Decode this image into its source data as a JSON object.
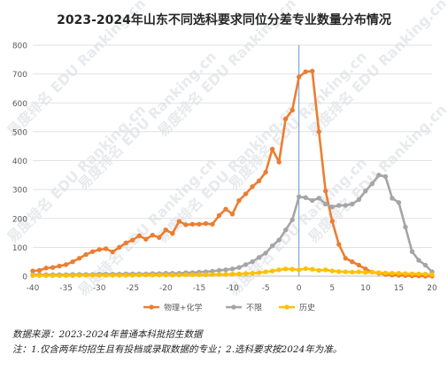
{
  "page": {
    "source_line": "数据来源：2023-2024年普通本科批招生数据",
    "note_line": "注：1.仅含两年均招生且有投档或录取数据的专业；2.选科要求按2024年为准。",
    "watermark": "易度排名 EDU Ranking.cn"
  },
  "chart_data": {
    "type": "line",
    "title": "2023-2024年山东不同选科要求同位分差专业数量分布情况",
    "xlabel": "",
    "ylabel": "",
    "xlim": [
      -40,
      20
    ],
    "ylim": [
      0,
      800
    ],
    "x_ticks": [
      -40,
      -35,
      -30,
      -25,
      -20,
      -15,
      -10,
      -5,
      0,
      5,
      10,
      15,
      20
    ],
    "y_ticks": [
      0,
      100,
      200,
      300,
      400,
      500,
      600,
      700,
      800
    ],
    "grid": "horizontal",
    "legend_position": "bottom",
    "reference_line_x": 0,
    "reference_line_color": "#5b9bd5",
    "series": [
      {
        "name": "物理+化学",
        "color": "#ed7d31",
        "points": [
          [
            -40,
            18
          ],
          [
            -39,
            20
          ],
          [
            -38,
            28
          ],
          [
            -37,
            30
          ],
          [
            -36,
            35
          ],
          [
            -35,
            40
          ],
          [
            -34,
            50
          ],
          [
            -33,
            62
          ],
          [
            -32,
            75
          ],
          [
            -31,
            85
          ],
          [
            -30,
            92
          ],
          [
            -29,
            95
          ],
          [
            -28,
            84
          ],
          [
            -27,
            100
          ],
          [
            -26,
            115
          ],
          [
            -25,
            125
          ],
          [
            -24,
            140
          ],
          [
            -23,
            128
          ],
          [
            -22,
            142
          ],
          [
            -21,
            134
          ],
          [
            -20,
            160
          ],
          [
            -19,
            148
          ],
          [
            -18,
            190
          ],
          [
            -17,
            178
          ],
          [
            -16,
            180
          ],
          [
            -15,
            180
          ],
          [
            -14,
            182
          ],
          [
            -13,
            180
          ],
          [
            -12,
            210
          ],
          [
            -11,
            232
          ],
          [
            -10,
            215
          ],
          [
            -9,
            262
          ],
          [
            -8,
            285
          ],
          [
            -7,
            310
          ],
          [
            -6,
            330
          ],
          [
            -5,
            360
          ],
          [
            -4,
            440
          ],
          [
            -3,
            395
          ],
          [
            -2,
            545
          ],
          [
            -1,
            575
          ],
          [
            0,
            690
          ],
          [
            1,
            708
          ],
          [
            2,
            710
          ],
          [
            3,
            500
          ],
          [
            4,
            295
          ],
          [
            5,
            190
          ],
          [
            6,
            110
          ],
          [
            7,
            62
          ],
          [
            8,
            50
          ],
          [
            9,
            38
          ],
          [
            10,
            25
          ],
          [
            11,
            14
          ],
          [
            12,
            10
          ],
          [
            13,
            6
          ],
          [
            14,
            4
          ],
          [
            15,
            3
          ],
          [
            16,
            2
          ],
          [
            17,
            1
          ],
          [
            18,
            1
          ],
          [
            19,
            0
          ],
          [
            20,
            0
          ]
        ]
      },
      {
        "name": "不限",
        "color": "#a5a5a5",
        "points": [
          [
            -40,
            5
          ],
          [
            -39,
            5
          ],
          [
            -38,
            5
          ],
          [
            -37,
            5
          ],
          [
            -36,
            5
          ],
          [
            -35,
            5
          ],
          [
            -34,
            6
          ],
          [
            -33,
            6
          ],
          [
            -32,
            6
          ],
          [
            -31,
            6
          ],
          [
            -30,
            7
          ],
          [
            -29,
            7
          ],
          [
            -28,
            7
          ],
          [
            -27,
            7
          ],
          [
            -26,
            8
          ],
          [
            -25,
            8
          ],
          [
            -24,
            8
          ],
          [
            -23,
            8
          ],
          [
            -22,
            9
          ],
          [
            -21,
            9
          ],
          [
            -20,
            10
          ],
          [
            -19,
            10
          ],
          [
            -18,
            10
          ],
          [
            -17,
            12
          ],
          [
            -16,
            12
          ],
          [
            -15,
            14
          ],
          [
            -14,
            15
          ],
          [
            -13,
            17
          ],
          [
            -12,
            20
          ],
          [
            -11,
            22
          ],
          [
            -10,
            25
          ],
          [
            -9,
            30
          ],
          [
            -8,
            40
          ],
          [
            -7,
            50
          ],
          [
            -6,
            65
          ],
          [
            -5,
            80
          ],
          [
            -4,
            105
          ],
          [
            -3,
            125
          ],
          [
            -2,
            160
          ],
          [
            -1,
            195
          ],
          [
            0,
            275
          ],
          [
            1,
            272
          ],
          [
            2,
            262
          ],
          [
            3,
            270
          ],
          [
            4,
            250
          ],
          [
            5,
            240
          ],
          [
            6,
            245
          ],
          [
            7,
            245
          ],
          [
            8,
            250
          ],
          [
            9,
            265
          ],
          [
            10,
            295
          ],
          [
            11,
            320
          ],
          [
            12,
            350
          ],
          [
            13,
            345
          ],
          [
            14,
            270
          ],
          [
            15,
            255
          ],
          [
            16,
            170
          ],
          [
            17,
            85
          ],
          [
            18,
            55
          ],
          [
            19,
            38
          ],
          [
            20,
            15
          ]
        ]
      },
      {
        "name": "历史",
        "color": "#ffc000",
        "points": [
          [
            -40,
            2
          ],
          [
            -39,
            2
          ],
          [
            -38,
            2
          ],
          [
            -37,
            2
          ],
          [
            -36,
            2
          ],
          [
            -35,
            2
          ],
          [
            -34,
            2
          ],
          [
            -33,
            3
          ],
          [
            -32,
            3
          ],
          [
            -31,
            3
          ],
          [
            -30,
            3
          ],
          [
            -29,
            3
          ],
          [
            -28,
            3
          ],
          [
            -27,
            3
          ],
          [
            -26,
            3
          ],
          [
            -25,
            3
          ],
          [
            -24,
            4
          ],
          [
            -23,
            4
          ],
          [
            -22,
            4
          ],
          [
            -21,
            4
          ],
          [
            -20,
            4
          ],
          [
            -19,
            4
          ],
          [
            -18,
            4
          ],
          [
            -17,
            5
          ],
          [
            -16,
            5
          ],
          [
            -15,
            5
          ],
          [
            -14,
            5
          ],
          [
            -13,
            6
          ],
          [
            -12,
            6
          ],
          [
            -11,
            6
          ],
          [
            -10,
            7
          ],
          [
            -9,
            8
          ],
          [
            -8,
            9
          ],
          [
            -7,
            10
          ],
          [
            -6,
            12
          ],
          [
            -5,
            15
          ],
          [
            -4,
            18
          ],
          [
            -3,
            22
          ],
          [
            -2,
            25
          ],
          [
            -1,
            24
          ],
          [
            0,
            22
          ],
          [
            1,
            26
          ],
          [
            2,
            24
          ],
          [
            3,
            20
          ],
          [
            4,
            22
          ],
          [
            5,
            18
          ],
          [
            6,
            16
          ],
          [
            7,
            15
          ],
          [
            8,
            14
          ],
          [
            9,
            15
          ],
          [
            10,
            13
          ],
          [
            11,
            14
          ],
          [
            12,
            12
          ],
          [
            13,
            11
          ],
          [
            14,
            10
          ],
          [
            15,
            10
          ],
          [
            16,
            9
          ],
          [
            17,
            8
          ],
          [
            18,
            8
          ],
          [
            19,
            7
          ],
          [
            20,
            5
          ]
        ]
      }
    ]
  }
}
